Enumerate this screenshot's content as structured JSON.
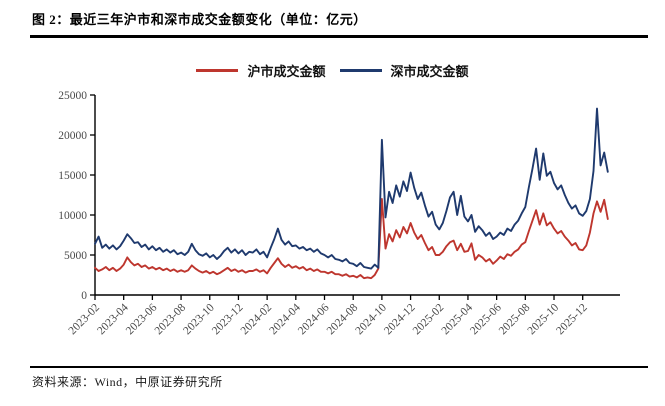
{
  "figure": {
    "title": "图 2：最近三年沪市和深市成交金额变化（单位：亿元）",
    "source": "资料来源：Wind，中原证券研究所"
  },
  "style": {
    "shanghai_red": "#be362e",
    "shenzhen_blue": "#1f3a6e",
    "axis_color": "#000000",
    "tick_label_color": "#4a4a4a",
    "rule_color": "#000000"
  },
  "chart_data": {
    "type": "line",
    "title": "最近三年沪市和深市成交金额变化",
    "unit": "亿元",
    "grid": false,
    "legend_position": "top",
    "ylim": [
      0,
      25000
    ],
    "y_ticks": [
      0,
      5000,
      10000,
      15000,
      20000,
      25000
    ],
    "x_tick_labels": [
      "2023-02",
      "2023-04",
      "2023-06",
      "2023-08",
      "2023-10",
      "2023-12",
      "2024-02",
      "2024-04",
      "2024-06",
      "2024-08",
      "2024-10",
      "2024-12",
      "2025-02",
      "2025-04",
      "2025-06",
      "2025-08",
      "2025-10",
      "2025-12"
    ],
    "x_tick_interval_months": 2,
    "x_axis_total_months": 36.6,
    "x_start_month": "2023-02",
    "points_per_month": 4,
    "series": [
      {
        "name": "沪市成交金额",
        "color": "#be362e",
        "values": [
          3400,
          3000,
          3200,
          3500,
          3100,
          3400,
          3000,
          3300,
          3800,
          4700,
          4100,
          3700,
          3900,
          3500,
          3700,
          3300,
          3500,
          3200,
          3400,
          3100,
          3300,
          3000,
          3200,
          2900,
          3100,
          2900,
          3100,
          3700,
          3300,
          3000,
          2800,
          3000,
          2700,
          2900,
          2600,
          2800,
          3100,
          3400,
          3000,
          3200,
          2900,
          3100,
          2800,
          3000,
          3000,
          3200,
          2900,
          3100,
          2700,
          3400,
          4000,
          4600,
          3900,
          3500,
          3800,
          3400,
          3600,
          3300,
          3500,
          3100,
          3300,
          3000,
          3200,
          2900,
          2900,
          2700,
          2900,
          2600,
          2600,
          2400,
          2600,
          2300,
          2400,
          2200,
          2500,
          2100,
          2200,
          2100,
          2500,
          3300,
          12000,
          5800,
          7600,
          6700,
          8100,
          7200,
          8500,
          7700,
          9000,
          7800,
          7000,
          7500,
          6500,
          5600,
          6000,
          5000,
          5000,
          5400,
          6100,
          6600,
          6800,
          5600,
          6400,
          5400,
          5500,
          6450,
          4400,
          5000,
          4700,
          4200,
          4500,
          3900,
          4300,
          4800,
          4500,
          5100,
          4900,
          5400,
          5700,
          6300,
          6600,
          8000,
          9300,
          10600,
          8800,
          10200,
          8700,
          9100,
          8300,
          7700,
          8000,
          7300,
          6800,
          6200,
          6500,
          5700,
          5600,
          6200,
          7800,
          10200,
          11700,
          10400,
          11900,
          9500
        ]
      },
      {
        "name": "深市成交金额",
        "color": "#1f3a6e",
        "values": [
          6400,
          7300,
          5900,
          6300,
          5800,
          6200,
          5700,
          6100,
          6800,
          7600,
          7100,
          6500,
          6600,
          6000,
          6300,
          5700,
          6100,
          5600,
          5900,
          5400,
          5700,
          5300,
          5600,
          5100,
          5300,
          5000,
          5400,
          6400,
          5600,
          5100,
          4900,
          5200,
          4700,
          5000,
          4500,
          4900,
          5500,
          5900,
          5300,
          5700,
          5200,
          5600,
          5000,
          5400,
          5300,
          5700,
          5100,
          5400,
          4700,
          5900,
          7000,
          8300,
          6900,
          6300,
          6700,
          6100,
          6200,
          5800,
          6000,
          5600,
          5800,
          5400,
          5700,
          5200,
          5000,
          4700,
          5000,
          4500,
          4400,
          4200,
          4500,
          4000,
          3900,
          3600,
          4000,
          3500,
          3400,
          3300,
          3800,
          3400,
          19400,
          9700,
          12900,
          11500,
          13700,
          12300,
          14200,
          13000,
          15300,
          13400,
          12000,
          12800,
          11200,
          9800,
          10400,
          8800,
          8200,
          9000,
          10500,
          12200,
          12900,
          10000,
          12400,
          9800,
          9200,
          10000,
          7900,
          8600,
          8100,
          7400,
          7800,
          7000,
          7300,
          7800,
          7500,
          8300,
          8000,
          8800,
          9300,
          10200,
          11000,
          13500,
          15800,
          18300,
          14400,
          17700,
          14900,
          15400,
          14000,
          13200,
          13700,
          12500,
          11500,
          10800,
          11200,
          10200,
          9900,
          10500,
          12000,
          15500,
          23300,
          16200,
          17800,
          15400
        ]
      }
    ]
  }
}
